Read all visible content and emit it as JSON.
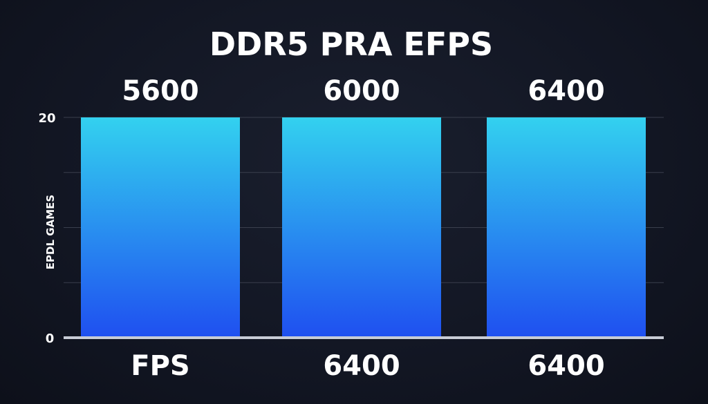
{
  "chart_data": {
    "type": "bar",
    "title": "DDR5 PRA EFPS",
    "ylabel": "EPDL GAMES",
    "xlabel": "",
    "ylim": [
      0,
      20
    ],
    "yticks": [
      "0",
      "20"
    ],
    "top_labels": [
      "5600",
      "6000",
      "6400"
    ],
    "bottom_labels": [
      "FPS",
      "6400",
      "6400"
    ],
    "values": [
      20,
      20,
      20
    ],
    "grid": true,
    "colors": {
      "bar_top": "#33d1ef",
      "bar_bottom": "#1f4ff0",
      "axis": "#c8ccd6",
      "grid": "#3a3f4d"
    }
  }
}
